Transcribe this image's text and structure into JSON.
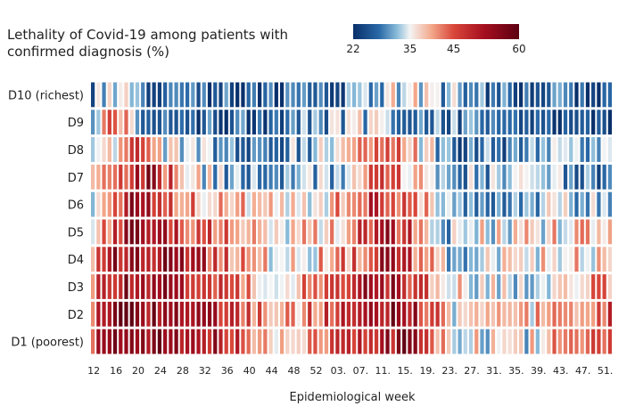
{
  "chart_data": {
    "type": "heatmap",
    "title_lines": [
      "Lethality of Covid-19 among patients with",
      "confirmed diagnosis (%)"
    ],
    "xlabel": "Epidemiological week",
    "rows": [
      "D10 (richest)",
      "D9",
      "D8",
      "D7",
      "D6",
      "D5",
      "D4",
      "D3",
      "D2",
      "D1 (poorest)"
    ],
    "x_tick_labels": [
      "12",
      "16",
      "20",
      "24",
      "28",
      "32",
      "36",
      "40",
      "44",
      "48",
      "52",
      "03.",
      "07.",
      "11.",
      "15.",
      "19.",
      "23.",
      "27.",
      "31.",
      "35.",
      "39.",
      "43.",
      "47.",
      "51."
    ],
    "n_columns": 94,
    "colorscale": {
      "min": 22,
      "max": 60,
      "ticks": [
        22,
        35,
        45,
        60
      ],
      "stops": [
        {
          "value": 22,
          "color": "#08306b"
        },
        {
          "value": 28,
          "color": "#2b6aa8"
        },
        {
          "value": 32,
          "color": "#89bbd9"
        },
        {
          "value": 35,
          "color": "#f4f4f4"
        },
        {
          "value": 40,
          "color": "#f3a78a"
        },
        {
          "value": 45,
          "color": "#d9473a"
        },
        {
          "value": 52,
          "color": "#a50f1f"
        },
        {
          "value": 60,
          "color": "#5c0011"
        }
      ]
    },
    "row_profiles": {
      "description_note": "",
      "D10 (richest)": [
        [
          0,
          30
        ],
        [
          3,
          36
        ],
        [
          6,
          33
        ],
        [
          8,
          37
        ],
        [
          10,
          28
        ],
        [
          20,
          26
        ],
        [
          40,
          25
        ],
        [
          52,
          33
        ],
        [
          56,
          35
        ],
        [
          62,
          33
        ],
        [
          70,
          27
        ],
        [
          94,
          25
        ]
      ],
      "D9": [
        [
          0,
          32
        ],
        [
          3,
          48
        ],
        [
          6,
          39
        ],
        [
          8,
          27
        ],
        [
          15,
          27
        ],
        [
          30,
          28
        ],
        [
          40,
          30
        ],
        [
          46,
          32
        ],
        [
          52,
          34
        ],
        [
          56,
          31
        ],
        [
          64,
          30
        ],
        [
          75,
          27
        ],
        [
          94,
          26
        ]
      ],
      "D8": [
        [
          0,
          29
        ],
        [
          4,
          38
        ],
        [
          8,
          48
        ],
        [
          12,
          38
        ],
        [
          16,
          32
        ],
        [
          22,
          30
        ],
        [
          30,
          27
        ],
        [
          40,
          33
        ],
        [
          46,
          37
        ],
        [
          52,
          44
        ],
        [
          58,
          38
        ],
        [
          64,
          28
        ],
        [
          80,
          30
        ],
        [
          94,
          30
        ]
      ],
      "D7": [
        [
          0,
          36
        ],
        [
          4,
          44
        ],
        [
          10,
          52
        ],
        [
          16,
          40
        ],
        [
          22,
          32
        ],
        [
          28,
          30
        ],
        [
          40,
          30
        ],
        [
          48,
          36
        ],
        [
          52,
          46
        ],
        [
          58,
          38
        ],
        [
          64,
          30
        ],
        [
          80,
          32
        ],
        [
          94,
          29
        ]
      ],
      "D6": [
        [
          0,
          27
        ],
        [
          3,
          46
        ],
        [
          8,
          52
        ],
        [
          14,
          44
        ],
        [
          20,
          40
        ],
        [
          30,
          38
        ],
        [
          40,
          37
        ],
        [
          48,
          43
        ],
        [
          52,
          50
        ],
        [
          58,
          42
        ],
        [
          64,
          31
        ],
        [
          76,
          32
        ],
        [
          86,
          34
        ],
        [
          94,
          31
        ]
      ],
      "D5": [
        [
          0,
          34
        ],
        [
          4,
          48
        ],
        [
          8,
          53
        ],
        [
          14,
          48
        ],
        [
          22,
          43
        ],
        [
          30,
          38
        ],
        [
          40,
          37
        ],
        [
          48,
          44
        ],
        [
          52,
          52
        ],
        [
          58,
          44
        ],
        [
          64,
          33
        ],
        [
          76,
          36
        ],
        [
          86,
          37
        ],
        [
          94,
          38
        ]
      ],
      "D4": [
        [
          0,
          38
        ],
        [
          4,
          52
        ],
        [
          10,
          54
        ],
        [
          18,
          50
        ],
        [
          26,
          43
        ],
        [
          32,
          38
        ],
        [
          40,
          38
        ],
        [
          48,
          44
        ],
        [
          52,
          53
        ],
        [
          58,
          45
        ],
        [
          64,
          34
        ],
        [
          76,
          35
        ],
        [
          86,
          37
        ],
        [
          94,
          39
        ]
      ],
      "D3": [
        [
          0,
          42
        ],
        [
          4,
          52
        ],
        [
          12,
          54
        ],
        [
          20,
          48
        ],
        [
          26,
          44
        ],
        [
          30,
          40
        ],
        [
          34,
          38
        ],
        [
          40,
          43
        ],
        [
          48,
          49
        ],
        [
          52,
          54
        ],
        [
          58,
          46
        ],
        [
          64,
          37
        ],
        [
          76,
          33
        ],
        [
          86,
          40
        ],
        [
          94,
          41
        ]
      ],
      "D2": [
        [
          0,
          45
        ],
        [
          4,
          54
        ],
        [
          12,
          55
        ],
        [
          20,
          50
        ],
        [
          26,
          46
        ],
        [
          30,
          42
        ],
        [
          36,
          40
        ],
        [
          42,
          46
        ],
        [
          50,
          52
        ],
        [
          56,
          55
        ],
        [
          60,
          46
        ],
        [
          64,
          37
        ],
        [
          76,
          35
        ],
        [
          86,
          42
        ],
        [
          94,
          45
        ]
      ],
      "D1 (poorest)": [
        [
          0,
          46
        ],
        [
          4,
          54
        ],
        [
          12,
          56
        ],
        [
          20,
          52
        ],
        [
          26,
          47
        ],
        [
          30,
          42
        ],
        [
          36,
          38
        ],
        [
          42,
          44
        ],
        [
          50,
          50
        ],
        [
          56,
          54
        ],
        [
          60,
          47
        ],
        [
          64,
          37
        ],
        [
          76,
          33
        ],
        [
          86,
          44
        ],
        [
          94,
          45
        ]
      ]
    }
  }
}
